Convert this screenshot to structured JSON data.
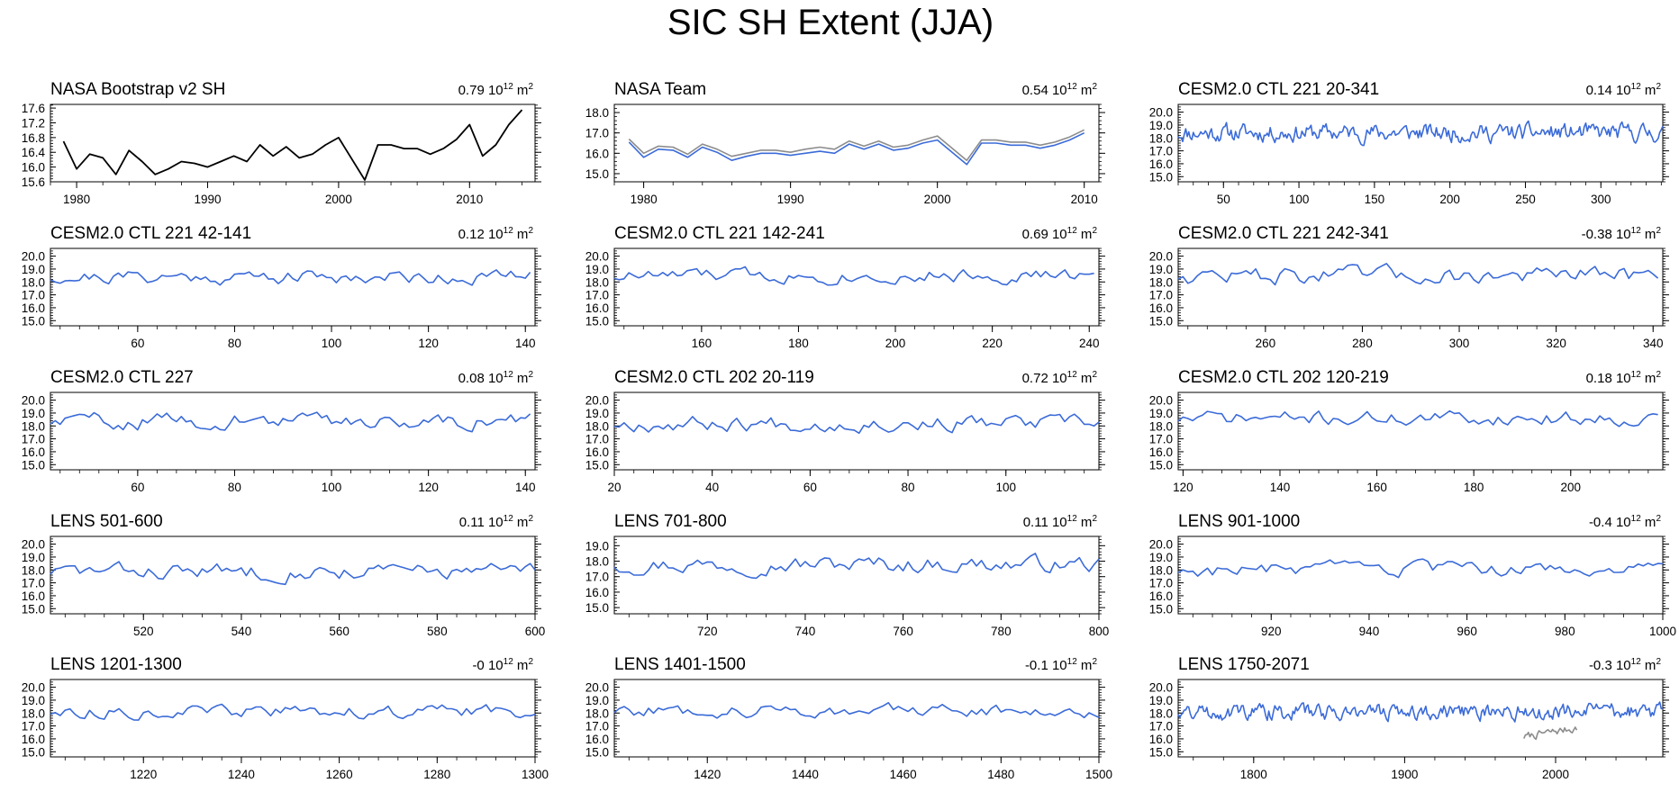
{
  "title": "SIC SH Extent (JJA)",
  "unit_label": {
    "base": "10",
    "exp": "12",
    "suffix": "m",
    "suffix_exp": "2"
  },
  "colors": {
    "model": "#3b6bd8",
    "obs": "#000000",
    "obs_gray": "#8c8c8c"
  },
  "chart_data": [
    {
      "type": "line",
      "title": "NASA Bootstrap v2 SH",
      "stat": "0.79",
      "xlim": [
        1978,
        2015
      ],
      "ylim": [
        15.6,
        17.7
      ],
      "xticks": [
        1980,
        1990,
        2000,
        2010
      ],
      "yticks": [
        "15.6",
        "16.0",
        "16.4",
        "16.8",
        "17.2",
        "17.6"
      ],
      "series": [
        {
          "name": "NASA Bootstrap v2 SH",
          "color": "#000000",
          "x": [
            1979,
            1980,
            1981,
            1982,
            1983,
            1984,
            1985,
            1986,
            1987,
            1988,
            1989,
            1990,
            1991,
            1992,
            1993,
            1994,
            1995,
            1996,
            1997,
            1998,
            1999,
            2000,
            2002,
            2003,
            2004,
            2005,
            2006,
            2007,
            2008,
            2009,
            2010,
            2011,
            2012,
            2013,
            2014
          ],
          "y": [
            16.7,
            15.95,
            16.35,
            16.25,
            15.8,
            16.45,
            16.15,
            15.8,
            15.95,
            16.15,
            16.1,
            16.0,
            16.15,
            16.3,
            16.15,
            16.6,
            16.3,
            16.55,
            16.25,
            16.35,
            16.6,
            16.8,
            15.65,
            16.6,
            16.6,
            16.5,
            16.5,
            16.35,
            16.5,
            16.75,
            17.15,
            16.3,
            16.6,
            17.15,
            17.55
          ]
        }
      ]
    },
    {
      "type": "line",
      "title": "NASA Team",
      "stat": "0.54",
      "xlim": [
        1978,
        2011
      ],
      "ylim": [
        14.6,
        18.4
      ],
      "xticks": [
        1980,
        1990,
        2000,
        2010
      ],
      "yticks": [
        "15.0",
        "16.0",
        "17.0",
        "18.0"
      ],
      "series": [
        {
          "name": "NASA Team (gray)",
          "color": "#8c8c8c",
          "x": [
            1979,
            1980,
            1981,
            1982,
            1983,
            1984,
            1985,
            1986,
            1987,
            1988,
            1989,
            1990,
            1991,
            1992,
            1993,
            1994,
            1995,
            1996,
            1997,
            1998,
            1999,
            2000,
            2002,
            2003,
            2004,
            2005,
            2006,
            2007,
            2008,
            2009,
            2010
          ],
          "y": [
            16.7,
            16.0,
            16.35,
            16.3,
            15.95,
            16.45,
            16.2,
            15.85,
            16.0,
            16.15,
            16.15,
            16.05,
            16.2,
            16.3,
            16.2,
            16.6,
            16.35,
            16.6,
            16.3,
            16.4,
            16.65,
            16.85,
            15.65,
            16.65,
            16.65,
            16.55,
            16.55,
            16.4,
            16.55,
            16.8,
            17.15
          ]
        },
        {
          "name": "NASA Team",
          "color": "#3b6bd8",
          "x": [
            1979,
            1980,
            1981,
            1982,
            1983,
            1984,
            1985,
            1986,
            1987,
            1988,
            1989,
            1990,
            1991,
            1992,
            1993,
            1994,
            1995,
            1996,
            1997,
            1998,
            1999,
            2000,
            2002,
            2003,
            2004,
            2005,
            2006,
            2007,
            2008,
            2009,
            2010
          ],
          "y": [
            16.55,
            15.8,
            16.2,
            16.15,
            15.8,
            16.3,
            16.05,
            15.65,
            15.85,
            16.0,
            16.0,
            15.9,
            16.0,
            16.1,
            16.0,
            16.45,
            16.2,
            16.45,
            16.15,
            16.25,
            16.5,
            16.65,
            15.45,
            16.5,
            16.5,
            16.4,
            16.4,
            16.25,
            16.4,
            16.65,
            17.0
          ]
        }
      ]
    },
    {
      "type": "line",
      "title": "CESM2.0 CTL 221 20-341",
      "stat": "0.14",
      "xlim": [
        20,
        341
      ],
      "ylim": [
        14.6,
        20.6
      ],
      "xticks": [
        50,
        100,
        150,
        200,
        250,
        300
      ],
      "yticks": [
        "15.0",
        "16.0",
        "17.0",
        "18.0",
        "19.0",
        "20.0"
      ],
      "series": [
        {
          "name": "CTL 221",
          "color": "#3b6bd8",
          "gen": {
            "n": 322,
            "mean": 18.4,
            "amp": 0.55,
            "seed": 11,
            "ymin": 17.1,
            "ymax": 19.8
          }
        }
      ]
    },
    {
      "type": "line",
      "title": "CESM2.0 CTL 221 42-141",
      "stat": "0.12",
      "xlim": [
        42,
        142
      ],
      "ylim": [
        14.6,
        20.6
      ],
      "xticks": [
        60,
        80,
        100,
        120,
        140
      ],
      "yticks": [
        "15.0",
        "16.0",
        "17.0",
        "18.0",
        "19.0",
        "20.0"
      ],
      "series": [
        {
          "name": "CTL 221",
          "color": "#3b6bd8",
          "gen": {
            "n": 100,
            "mean": 18.4,
            "amp": 0.45,
            "seed": 21,
            "ymin": 17.3,
            "ymax": 19.4
          }
        }
      ]
    },
    {
      "type": "line",
      "title": "CESM2.0 CTL 221 142-241",
      "stat": "0.69",
      "xlim": [
        142,
        242
      ],
      "ylim": [
        14.6,
        20.6
      ],
      "xticks": [
        160,
        180,
        200,
        220,
        240
      ],
      "yticks": [
        "15.0",
        "16.0",
        "17.0",
        "18.0",
        "19.0",
        "20.0"
      ],
      "series": [
        {
          "name": "CTL 221",
          "color": "#3b6bd8",
          "gen": {
            "n": 100,
            "mean": 18.5,
            "amp": 0.45,
            "seed": 33,
            "ymin": 17.3,
            "ymax": 19.4
          }
        }
      ]
    },
    {
      "type": "line",
      "title": "CESM2.0 CTL 221 242-341",
      "stat": "-0.38",
      "xlim": [
        242,
        342
      ],
      "ylim": [
        14.6,
        20.6
      ],
      "xticks": [
        260,
        280,
        300,
        320,
        340
      ],
      "yticks": [
        "15.0",
        "16.0",
        "17.0",
        "18.0",
        "19.0",
        "20.0"
      ],
      "series": [
        {
          "name": "CTL 221",
          "color": "#3b6bd8",
          "gen": {
            "n": 100,
            "mean": 18.5,
            "amp": 0.55,
            "seed": 47,
            "ymin": 17.0,
            "ymax": 19.8
          }
        }
      ]
    },
    {
      "type": "line",
      "title": "CESM2.0 CTL 227",
      "stat": "0.08",
      "xlim": [
        42,
        142
      ],
      "ylim": [
        14.6,
        20.6
      ],
      "xticks": [
        60,
        80,
        100,
        120,
        140
      ],
      "yticks": [
        "15.0",
        "16.0",
        "17.0",
        "18.0",
        "19.0",
        "20.0"
      ],
      "series": [
        {
          "name": "CTL 227",
          "color": "#3b6bd8",
          "gen": {
            "n": 100,
            "mean": 18.4,
            "amp": 0.5,
            "seed": 59,
            "ymin": 17.2,
            "ymax": 19.7
          }
        }
      ]
    },
    {
      "type": "line",
      "title": "CESM2.0 CTL 202 20-119",
      "stat": "0.72",
      "xlim": [
        20,
        119
      ],
      "ylim": [
        14.6,
        20.6
      ],
      "xticks": [
        20,
        40,
        60,
        80,
        100
      ],
      "yticks": [
        "15.0",
        "16.0",
        "17.0",
        "18.0",
        "19.0",
        "20.0"
      ],
      "series": [
        {
          "name": "CTL 202",
          "color": "#3b6bd8",
          "gen": {
            "n": 100,
            "mean": 18.2,
            "amp": 0.5,
            "seed": 67,
            "ymin": 16.6,
            "ymax": 19.1
          }
        }
      ]
    },
    {
      "type": "line",
      "title": "CESM2.0 CTL 202 120-219",
      "stat": "0.18",
      "xlim": [
        119,
        219
      ],
      "ylim": [
        14.6,
        20.6
      ],
      "xticks": [
        120,
        140,
        160,
        180,
        200
      ],
      "yticks": [
        "15.0",
        "16.0",
        "17.0",
        "18.0",
        "19.0",
        "20.0"
      ],
      "series": [
        {
          "name": "CTL 202",
          "color": "#3b6bd8",
          "gen": {
            "n": 100,
            "mean": 18.6,
            "amp": 0.45,
            "seed": 71,
            "ymin": 17.2,
            "ymax": 19.8
          }
        }
      ]
    },
    {
      "type": "line",
      "title": "LENS 501-600",
      "stat": "0.11",
      "xlim": [
        501,
        600
      ],
      "ylim": [
        14.6,
        20.6
      ],
      "xticks": [
        520,
        540,
        560,
        580,
        600
      ],
      "yticks": [
        "15.0",
        "16.0",
        "17.0",
        "18.0",
        "19.0",
        "20.0"
      ],
      "series": [
        {
          "name": "LENS",
          "color": "#3b6bd8",
          "gen": {
            "n": 100,
            "mean": 17.9,
            "amp": 0.5,
            "seed": 83,
            "ymin": 16.7,
            "ymax": 19.1
          }
        }
      ]
    },
    {
      "type": "line",
      "title": "LENS 701-800",
      "stat": "0.11",
      "xlim": [
        701,
        800
      ],
      "ylim": [
        14.6,
        19.6
      ],
      "xticks": [
        720,
        740,
        760,
        780,
        800
      ],
      "yticks": [
        "15.0",
        "16.0",
        "17.0",
        "18.0",
        "19.0"
      ],
      "series": [
        {
          "name": "LENS",
          "color": "#3b6bd8",
          "gen": {
            "n": 100,
            "mean": 17.8,
            "amp": 0.45,
            "seed": 97,
            "ymin": 16.9,
            "ymax": 18.9
          }
        }
      ]
    },
    {
      "type": "line",
      "title": "LENS 901-1000",
      "stat": "-0.4",
      "xlim": [
        901,
        1000
      ],
      "ylim": [
        14.6,
        20.6
      ],
      "xticks": [
        920,
        940,
        960,
        980,
        1000
      ],
      "yticks": [
        "15.0",
        "16.0",
        "17.0",
        "18.0",
        "19.0",
        "20.0"
      ],
      "series": [
        {
          "name": "LENS",
          "color": "#3b6bd8",
          "gen": {
            "n": 100,
            "mean": 18.0,
            "amp": 0.45,
            "seed": 103,
            "ymin": 16.9,
            "ymax": 19.8
          }
        }
      ]
    },
    {
      "type": "line",
      "title": "LENS 1201-1300",
      "stat": "-0",
      "xlim": [
        1201,
        1300
      ],
      "ylim": [
        14.6,
        20.6
      ],
      "xticks": [
        1220,
        1240,
        1260,
        1280,
        1300
      ],
      "yticks": [
        "15.0",
        "16.0",
        "17.0",
        "18.0",
        "19.0",
        "20.0"
      ],
      "series": [
        {
          "name": "LENS",
          "color": "#3b6bd8",
          "gen": {
            "n": 100,
            "mean": 18.1,
            "amp": 0.4,
            "seed": 113,
            "ymin": 17.2,
            "ymax": 19.0
          }
        }
      ]
    },
    {
      "type": "line",
      "title": "LENS 1401-1500",
      "stat": "-0.1",
      "xlim": [
        1401,
        1500
      ],
      "ylim": [
        14.6,
        20.6
      ],
      "xticks": [
        1420,
        1440,
        1460,
        1480,
        1500
      ],
      "yticks": [
        "15.0",
        "16.0",
        "17.0",
        "18.0",
        "19.0",
        "20.0"
      ],
      "series": [
        {
          "name": "LENS",
          "color": "#3b6bd8",
          "gen": {
            "n": 100,
            "mean": 18.2,
            "amp": 0.4,
            "seed": 127,
            "ymin": 17.0,
            "ymax": 19.1
          }
        }
      ]
    },
    {
      "type": "line",
      "title": "LENS 1750-2071",
      "stat": "-0.3",
      "xlim": [
        1750,
        2071
      ],
      "ylim": [
        14.6,
        20.6
      ],
      "xticks": [
        1800,
        1900,
        2000
      ],
      "yticks": [
        "15.0",
        "16.0",
        "17.0",
        "18.0",
        "19.0",
        "20.0"
      ],
      "series": [
        {
          "name": "LENS",
          "color": "#3b6bd8",
          "gen": {
            "n": 322,
            "mean": 18.1,
            "amp": 0.5,
            "seed": 131,
            "ymin": 16.8,
            "ymax": 19.2
          }
        },
        {
          "name": "Observations",
          "color": "#8c8c8c",
          "gen": {
            "x0": 1979,
            "n": 36,
            "mean": 16.15,
            "amp": 0.25,
            "seed": 7,
            "ymin": 15.6,
            "ymax": 17.2,
            "trend": 0.02
          }
        }
      ]
    }
  ]
}
